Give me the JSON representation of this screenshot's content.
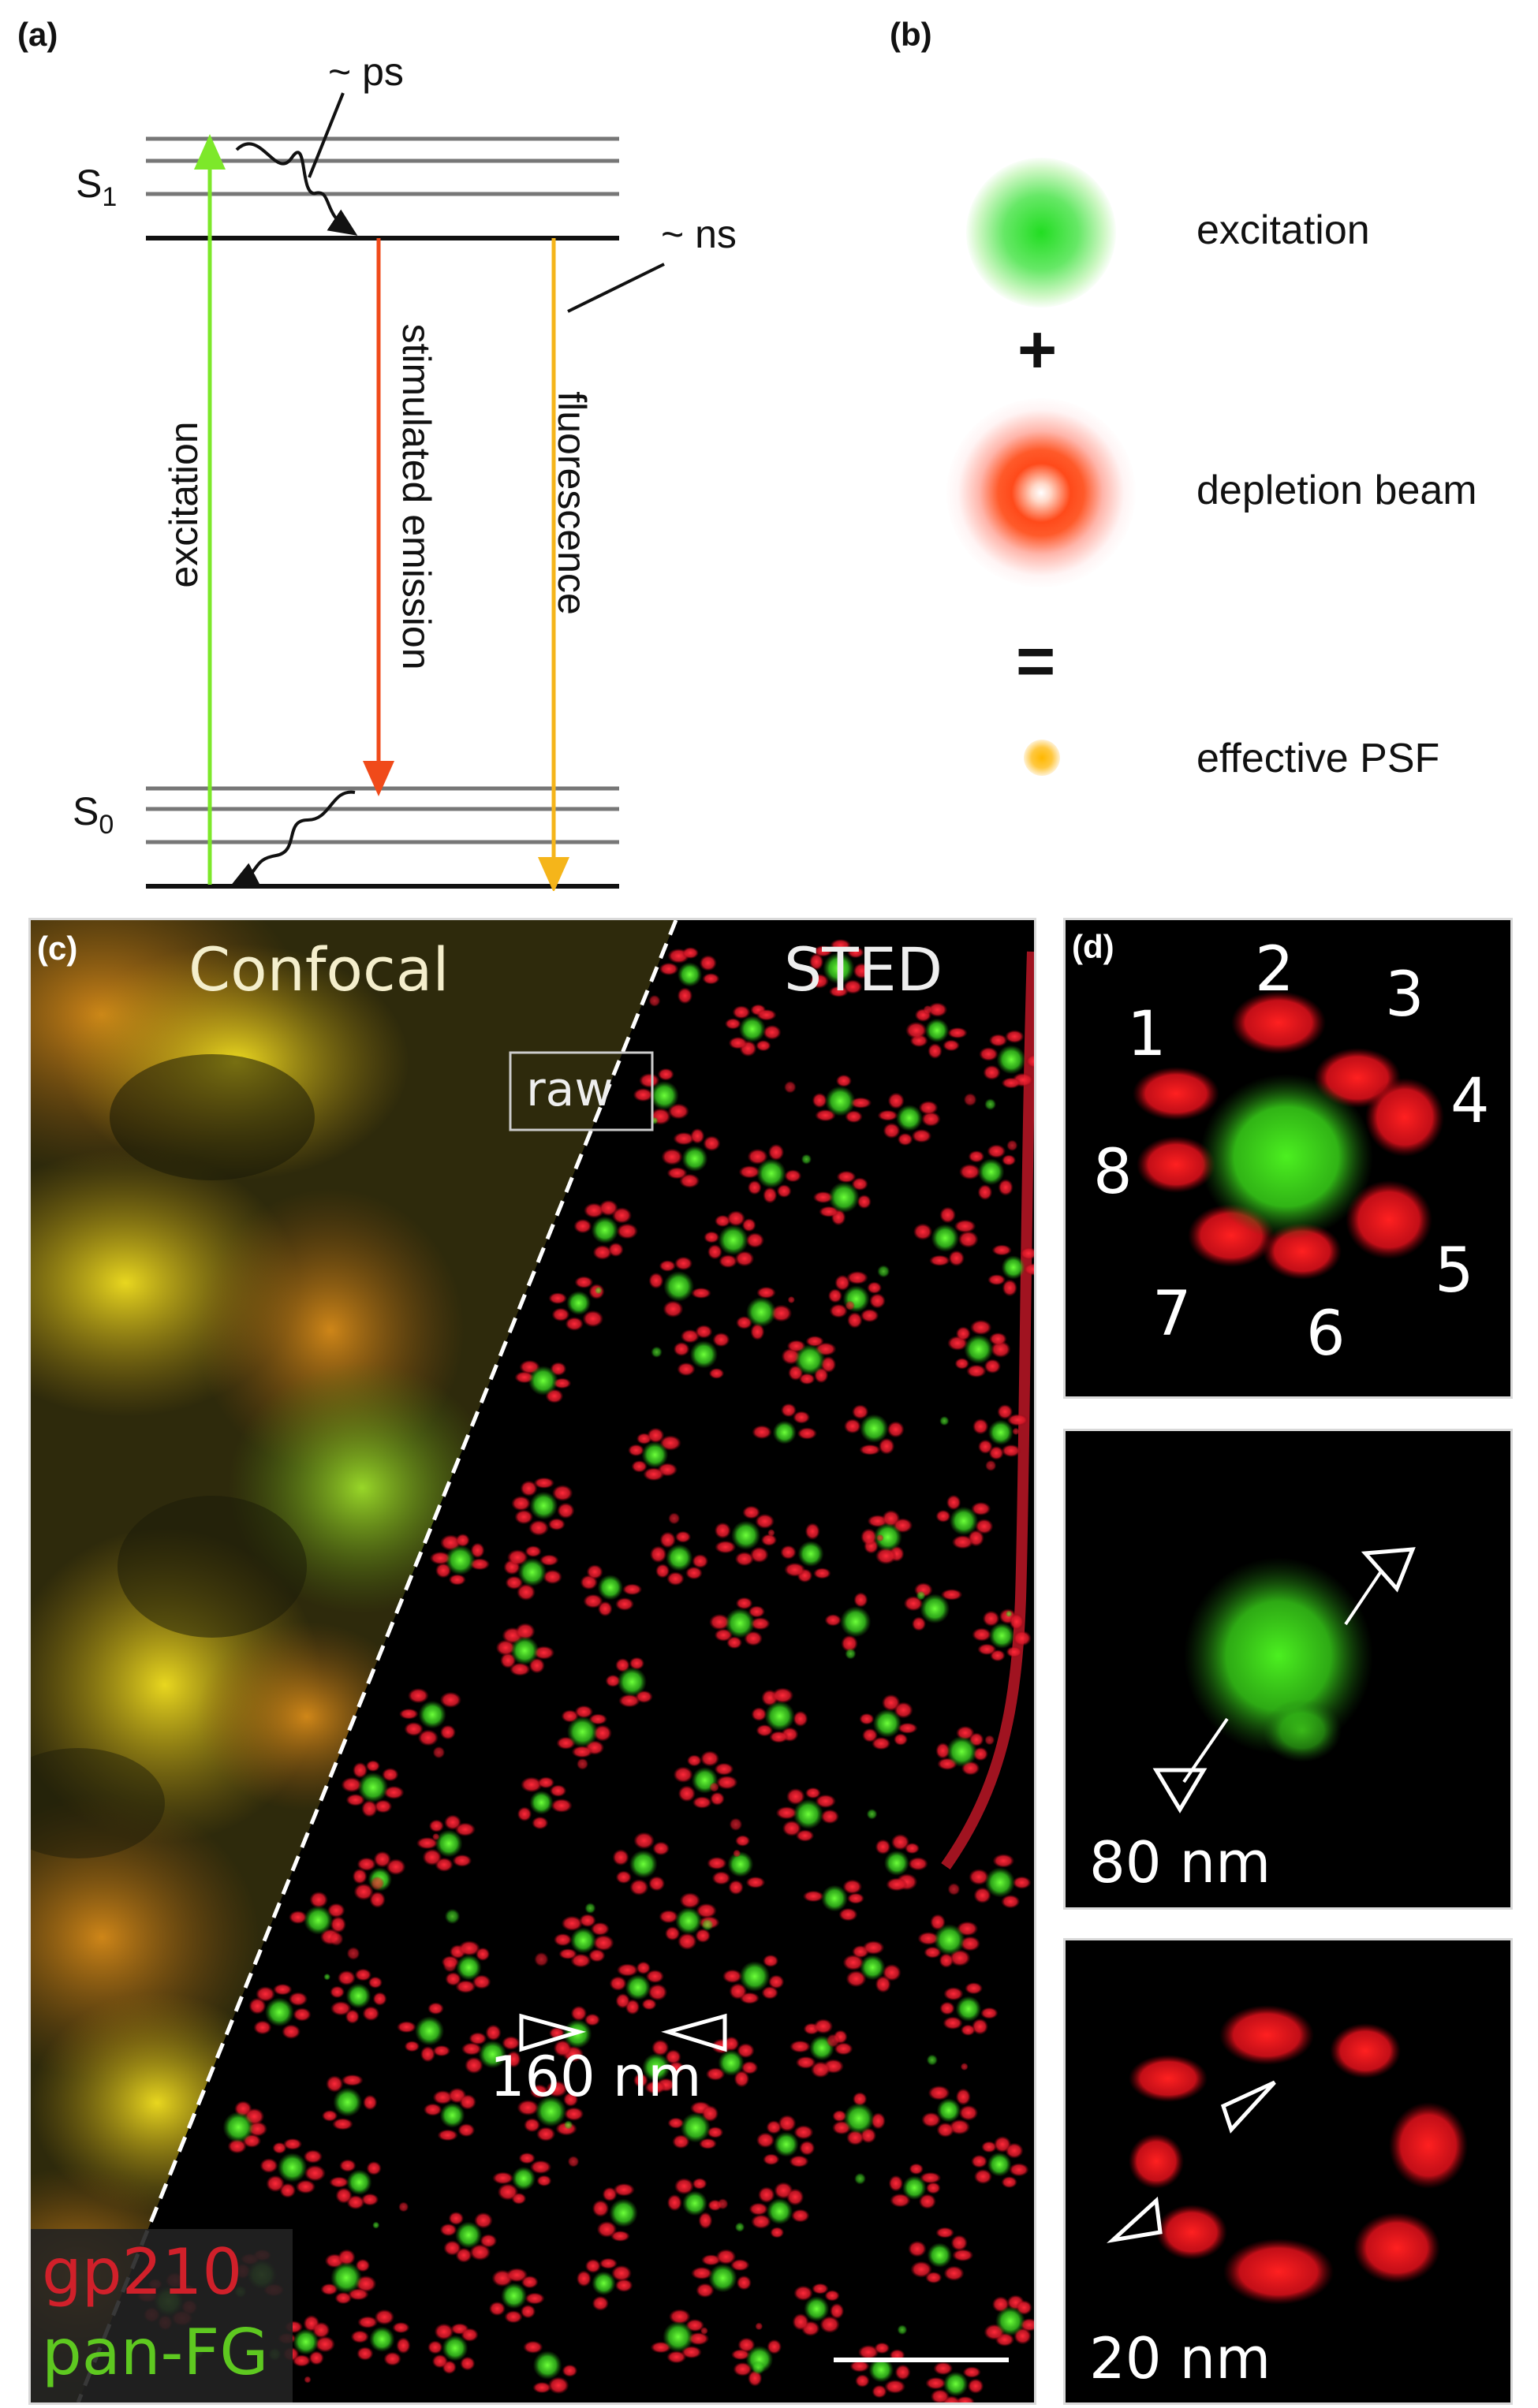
{
  "panels": {
    "a": {
      "label": "(a)",
      "s1_main": "S",
      "s1_sub": "1",
      "s0_main": "S",
      "s0_sub": "0",
      "ps_label": "~ ps",
      "ns_label": "~ ns",
      "excitation": "excitation",
      "stimulated_emission": "stimulated emission",
      "fluorescence": "fluorescence",
      "colors": {
        "excitation": "#7de82a",
        "stimulated": "#f04a1a",
        "fluorescence": "#f5b51a"
      }
    },
    "b": {
      "label": "(b)",
      "excitation": "excitation",
      "plus": "+",
      "depletion": "depletion beam",
      "equals": "=",
      "psf": "effective PSF"
    },
    "c": {
      "label": "(c)",
      "confocal": "Confocal",
      "sted": "STED",
      "raw": "raw",
      "scale_annotation": "160 nm",
      "legend_red": "gp210",
      "legend_green": "pan-FG",
      "legend_colors": {
        "red": "#d0202a",
        "green": "#5ec820"
      }
    },
    "d": {
      "label": "(d)",
      "numbers": [
        "1",
        "2",
        "3",
        "4",
        "5",
        "6",
        "7",
        "8"
      ],
      "scale1": "80 nm",
      "scale2": "20 nm"
    }
  }
}
